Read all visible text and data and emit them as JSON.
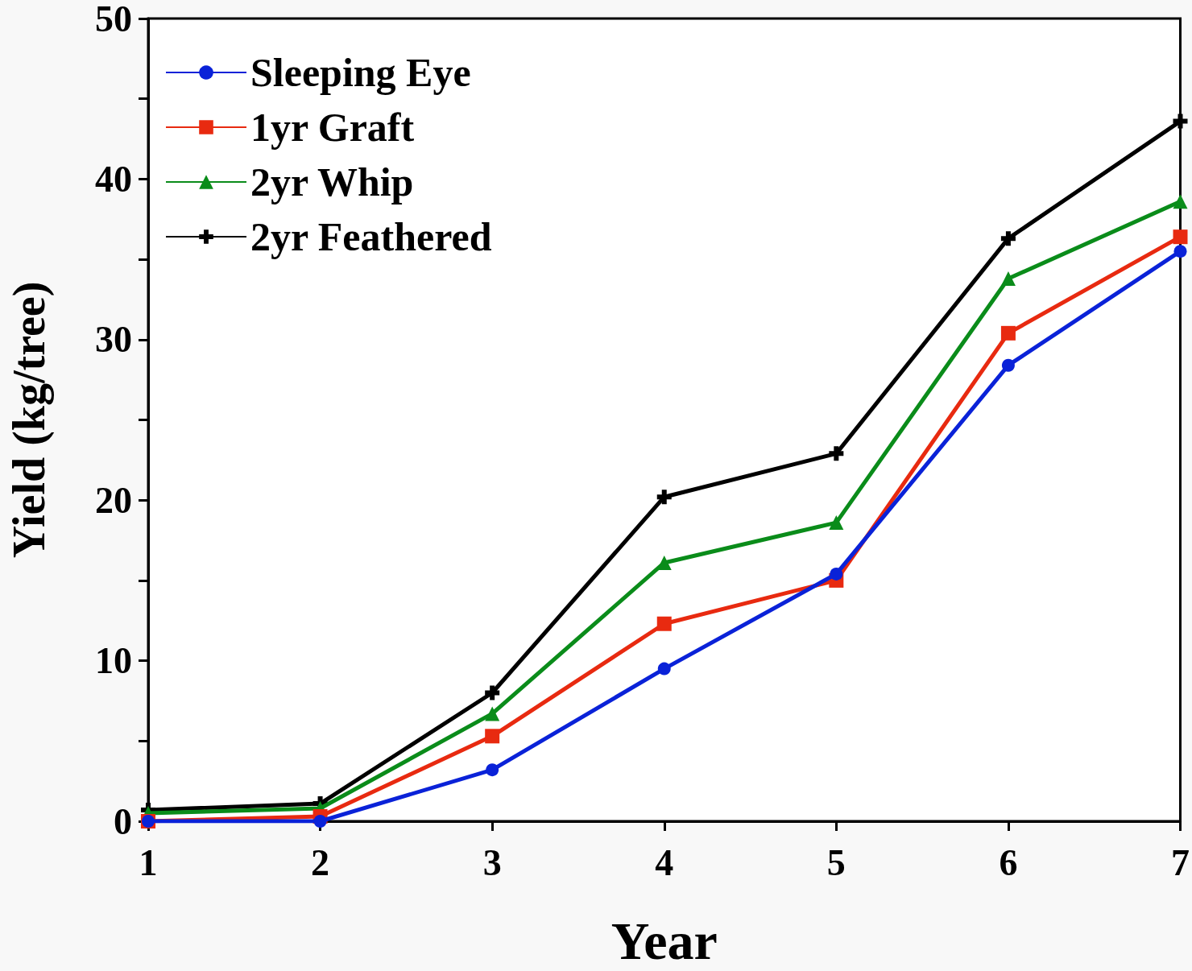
{
  "chart_data": {
    "type": "line",
    "xlabel": "Year",
    "ylabel": "Yield (kg/tree)",
    "x": [
      1,
      2,
      3,
      4,
      5,
      6,
      7
    ],
    "xlim": [
      1,
      7
    ],
    "xticks": [
      1,
      2,
      3,
      4,
      5,
      6,
      7
    ],
    "ylim": [
      0,
      50
    ],
    "yticks": [
      0,
      {
        "value": 5,
        "label": null
      },
      10,
      {
        "value": 15,
        "label": null
      },
      20,
      {
        "value": 25,
        "label": null
      },
      30,
      {
        "value": 35,
        "label": null
      },
      40,
      {
        "value": 45,
        "label": null
      },
      50
    ],
    "grid": false,
    "legend": "top left",
    "line_style": "solid",
    "series": [
      {
        "name": "Sleeping Eye",
        "color": "#0a22d8",
        "marker": "circle",
        "values": [
          0,
          0,
          3.2,
          9.5,
          15.4,
          28.4,
          35.5
        ]
      },
      {
        "name": "1yr Graft",
        "color": "#e82a10",
        "marker": "square",
        "values": [
          0,
          0.3,
          5.3,
          12.3,
          15.0,
          30.4,
          36.4
        ]
      },
      {
        "name": "2yr Whip",
        "color": "#0a8c1a",
        "marker": "triangle",
        "values": [
          0.5,
          0.8,
          6.7,
          16.1,
          18.6,
          33.8,
          38.6
        ]
      },
      {
        "name": "2yr Feathered",
        "color": "#000000",
        "marker": "cross",
        "values": [
          0.7,
          1.1,
          8.0,
          20.2,
          22.9,
          36.3,
          43.6
        ]
      }
    ]
  }
}
